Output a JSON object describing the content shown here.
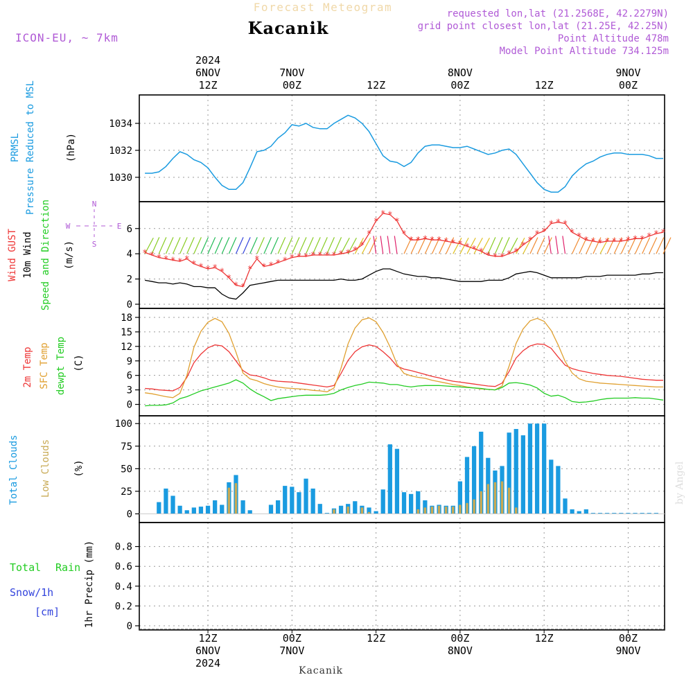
{
  "header": {
    "product": "Forecast Meteogram",
    "location": "Kacanik",
    "model": "ICON-EU, ~ 7km",
    "requested": "requested lon,lat (21.2568E, 42.2279N)",
    "gridpoint": "grid point closest lon,lat (21.25E, 42.25N)",
    "point_altitude": "Point Altitude 478m",
    "model_altitude": "Model Point Altitude 734.125m",
    "footer_location": "Kacanik",
    "watermark": "by Angel"
  },
  "colors": {
    "pressure": "#1a9be0",
    "gust": "#ee3535",
    "wind10m": "#000000",
    "temp2m": "#ee3535",
    "sfc": "#e0a030",
    "dewpt": "#22cc22",
    "total_clouds": "#1a9be0",
    "low_clouds": "#c8aa55",
    "rain": "#22cc22",
    "snow": "#3344dd",
    "purple": "#b05ad6"
  },
  "time_axis": {
    "top_labels": [
      {
        "h": 12,
        "l1": "2024",
        "l2": "6NOV",
        "l3": "12Z"
      },
      {
        "h": 24,
        "l2": "7NOV",
        "l3": "00Z"
      },
      {
        "h": 36,
        "l3": "12Z"
      },
      {
        "h": 48,
        "l2": "8NOV",
        "l3": "00Z"
      },
      {
        "h": 60,
        "l3": "12Z"
      },
      {
        "h": 72,
        "l2": "9NOV",
        "l3": "00Z"
      }
    ],
    "bottom_labels": [
      {
        "h": 12,
        "l1": "12Z",
        "l2": "6NOV",
        "l3": "2024"
      },
      {
        "h": 24,
        "l1": "00Z",
        "l2": "7NOV"
      },
      {
        "h": 36,
        "l1": "12Z"
      },
      {
        "h": 48,
        "l1": "00Z",
        "l2": "8NOV"
      },
      {
        "h": 60,
        "l1": "12Z"
      },
      {
        "h": 72,
        "l1": "00Z",
        "l2": "9NOV"
      }
    ],
    "range_hours": [
      2.2,
      77.2
    ]
  },
  "panels": {
    "pressure": {
      "labels": [
        "PRMSL",
        "Pressure Reduced to MSL"
      ],
      "unit": "(hPa)",
      "ticks": [
        "1030",
        "1032",
        "1034"
      ],
      "tick_values": [
        1030,
        1032,
        1034
      ],
      "ylim": [
        1028.5,
        1035.8
      ]
    },
    "wind": {
      "labels": [
        "Wind GUST",
        "10m Wind",
        "Speed and Direction"
      ],
      "unit": "(m/s)",
      "ticks": [
        "0",
        "2",
        "4",
        "6"
      ],
      "tick_values": [
        0,
        2,
        4,
        6
      ],
      "ylim": [
        0,
        7.8
      ],
      "compass": {
        "n": "N",
        "s": "S",
        "w": "W",
        "e": "E"
      }
    },
    "temp": {
      "labels": [
        "2m Temp",
        "SFC Temp",
        "dewpt Temp"
      ],
      "unit": "(C)",
      "ticks": [
        "0",
        "3",
        "6",
        "9",
        "12",
        "15",
        "18"
      ],
      "tick_values": [
        0,
        3,
        6,
        9,
        12,
        15,
        18
      ],
      "ylim": [
        -1.5,
        19
      ]
    },
    "clouds": {
      "labels": [
        "Total Clouds",
        "Low Clouds"
      ],
      "unit": "(%)",
      "ticks": [
        "0",
        "25",
        "50",
        "75",
        "100"
      ],
      "tick_values": [
        0,
        25,
        50,
        75,
        100
      ],
      "ylim": [
        -5,
        104
      ]
    },
    "precip": {
      "labels": [
        "Total",
        "Rain",
        "Snow/1h",
        "[cm]"
      ],
      "unit": "1hr Precip (mm)",
      "ticks": [
        "0",
        "0.2",
        "0.4",
        "0.6",
        "0.8"
      ],
      "tick_values": [
        0,
        0.2,
        0.4,
        0.6,
        0.8
      ],
      "ylim": [
        0,
        1.0
      ]
    }
  },
  "chart_data": [
    {
      "type": "line",
      "title": "PRMSL Pressure Reduced to MSL",
      "ylabel": "hPa",
      "x": [
        3,
        4,
        5,
        6,
        7,
        8,
        9,
        10,
        11,
        12,
        13,
        14,
        15,
        16,
        17,
        18,
        19,
        20,
        21,
        22,
        23,
        24,
        25,
        26,
        27,
        28,
        29,
        30,
        31,
        32,
        33,
        34,
        35,
        36,
        37,
        38,
        39,
        40,
        41,
        42,
        43,
        44,
        45,
        46,
        47,
        48,
        49,
        50,
        51,
        52,
        53,
        54,
        55,
        56,
        57,
        58,
        59,
        60,
        61,
        62,
        63,
        64,
        65,
        66,
        67,
        68,
        69,
        70,
        71,
        72,
        73,
        74,
        75,
        76,
        77
      ],
      "series": [
        {
          "name": "PRMSL",
          "values": [
            1030.3,
            1030.3,
            1030.4,
            1030.8,
            1031.4,
            1031.9,
            1031.7,
            1031.3,
            1031.1,
            1030.7,
            1030.0,
            1029.4,
            1029.1,
            1029.1,
            1029.6,
            1030.7,
            1031.9,
            1032.0,
            1032.3,
            1032.9,
            1033.3,
            1033.9,
            1033.8,
            1034.0,
            1033.7,
            1033.6,
            1033.6,
            1034.0,
            1034.3,
            1034.6,
            1034.4,
            1034.0,
            1033.4,
            1032.5,
            1031.6,
            1031.2,
            1031.1,
            1030.8,
            1031.1,
            1031.8,
            1032.3,
            1032.4,
            1032.4,
            1032.3,
            1032.2,
            1032.2,
            1032.3,
            1032.1,
            1031.9,
            1031.7,
            1031.8,
            1032.0,
            1032.1,
            1031.7,
            1031.0,
            1030.3,
            1029.6,
            1029.1,
            1028.9,
            1028.9,
            1029.3,
            1030.1,
            1030.6,
            1031.0,
            1031.2,
            1031.5,
            1031.7,
            1031.8,
            1031.8,
            1031.7,
            1031.7,
            1031.7,
            1031.6,
            1031.4,
            1031.4
          ]
        }
      ]
    },
    {
      "type": "line",
      "title": "Wind GUST / 10m Wind",
      "ylabel": "m/s",
      "x": [
        3,
        4,
        5,
        6,
        7,
        8,
        9,
        10,
        11,
        12,
        13,
        14,
        15,
        16,
        17,
        18,
        19,
        20,
        21,
        22,
        23,
        24,
        25,
        26,
        27,
        28,
        29,
        30,
        31,
        32,
        33,
        34,
        35,
        36,
        37,
        38,
        39,
        40,
        41,
        42,
        43,
        44,
        45,
        46,
        47,
        48,
        49,
        50,
        51,
        52,
        53,
        54,
        55,
        56,
        57,
        58,
        59,
        60,
        61,
        62,
        63,
        64,
        65,
        66,
        67,
        68,
        69,
        70,
        71,
        72,
        73,
        74,
        75,
        76,
        77
      ],
      "series": [
        {
          "name": "Wind GUST",
          "values": [
            4.1,
            3.9,
            3.7,
            3.6,
            3.5,
            3.4,
            3.6,
            3.2,
            3.0,
            2.8,
            2.9,
            2.6,
            2.1,
            1.5,
            1.4,
            2.8,
            3.6,
            3.0,
            3.1,
            3.3,
            3.5,
            3.7,
            3.8,
            3.8,
            3.9,
            3.9,
            3.9,
            3.9,
            4.0,
            4.1,
            4.3,
            4.7,
            5.6,
            6.6,
            7.2,
            7.1,
            6.6,
            5.6,
            5.1,
            5.1,
            5.2,
            5.1,
            5.1,
            5.0,
            4.9,
            4.8,
            4.6,
            4.4,
            4.2,
            3.9,
            3.8,
            3.8,
            4.0,
            4.2,
            4.7,
            5.1,
            5.6,
            5.8,
            6.4,
            6.5,
            6.4,
            5.7,
            5.4,
            5.1,
            5.0,
            4.9,
            5.0,
            5.0,
            5.0,
            5.1,
            5.2,
            5.2,
            5.4,
            5.6,
            5.7
          ]
        },
        {
          "name": "10m Wind",
          "values": [
            1.9,
            1.8,
            1.7,
            1.7,
            1.6,
            1.7,
            1.6,
            1.4,
            1.4,
            1.3,
            1.3,
            0.8,
            0.5,
            0.4,
            0.9,
            1.5,
            1.6,
            1.7,
            1.8,
            1.9,
            1.9,
            1.9,
            1.9,
            1.9,
            1.9,
            1.9,
            1.9,
            1.9,
            2.0,
            1.9,
            1.9,
            2.0,
            2.3,
            2.6,
            2.8,
            2.8,
            2.6,
            2.4,
            2.3,
            2.2,
            2.2,
            2.1,
            2.1,
            2.0,
            1.9,
            1.8,
            1.8,
            1.8,
            1.8,
            1.9,
            1.9,
            1.9,
            2.1,
            2.4,
            2.5,
            2.6,
            2.5,
            2.3,
            2.1,
            2.1,
            2.1,
            2.1,
            2.1,
            2.2,
            2.2,
            2.2,
            2.3,
            2.3,
            2.3,
            2.3,
            2.3,
            2.4,
            2.4,
            2.5,
            2.5
          ]
        }
      ]
    },
    {
      "type": "line",
      "title": "2m Temp / SFC Temp / dewpt Temp",
      "ylabel": "C",
      "x": [
        3,
        4,
        5,
        6,
        7,
        8,
        9,
        10,
        11,
        12,
        13,
        14,
        15,
        16,
        17,
        18,
        19,
        20,
        21,
        22,
        23,
        24,
        25,
        26,
        27,
        28,
        29,
        30,
        31,
        32,
        33,
        34,
        35,
        36,
        37,
        38,
        39,
        40,
        41,
        42,
        43,
        44,
        45,
        46,
        47,
        48,
        49,
        50,
        51,
        52,
        53,
        54,
        55,
        56,
        57,
        58,
        59,
        60,
        61,
        62,
        63,
        64,
        65,
        66,
        67,
        68,
        69,
        70,
        71,
        72,
        73,
        74,
        75,
        76,
        77
      ],
      "series": [
        {
          "name": "2m Temp",
          "values": [
            3.3,
            3.2,
            3.0,
            2.9,
            2.8,
            3.5,
            5.6,
            8.6,
            10.4,
            11.7,
            12.3,
            12.1,
            10.9,
            9.0,
            7.0,
            6.1,
            5.9,
            5.5,
            5.0,
            4.8,
            4.7,
            4.6,
            4.4,
            4.2,
            4.0,
            3.8,
            3.6,
            3.9,
            6.4,
            9.1,
            10.9,
            11.9,
            12.3,
            12.0,
            10.9,
            9.6,
            7.9,
            7.3,
            7.0,
            6.6,
            6.2,
            5.8,
            5.5,
            5.1,
            4.8,
            4.6,
            4.4,
            4.2,
            4.0,
            3.8,
            3.7,
            4.4,
            6.8,
            9.6,
            11.1,
            12.1,
            12.5,
            12.4,
            11.6,
            9.8,
            8.1,
            7.4,
            7.0,
            6.7,
            6.4,
            6.2,
            6.0,
            5.9,
            5.8,
            5.6,
            5.4,
            5.2,
            5.1,
            5.0,
            5.0
          ]
        },
        {
          "name": "SFC Temp",
          "values": [
            2.4,
            2.2,
            1.9,
            1.6,
            1.4,
            2.3,
            6.0,
            11.8,
            15.1,
            17.0,
            17.8,
            17.1,
            14.7,
            10.8,
            6.5,
            5.3,
            4.9,
            4.3,
            3.9,
            3.6,
            3.4,
            3.3,
            3.2,
            3.1,
            2.9,
            2.8,
            2.6,
            3.4,
            7.5,
            12.5,
            15.8,
            17.5,
            17.9,
            17.1,
            14.9,
            11.9,
            8.3,
            6.4,
            5.9,
            5.6,
            5.4,
            5.0,
            4.7,
            4.4,
            4.1,
            3.9,
            3.6,
            3.4,
            3.2,
            3.1,
            3.0,
            3.8,
            7.9,
            12.6,
            15.6,
            17.3,
            17.8,
            17.2,
            15.3,
            12.3,
            8.9,
            6.5,
            5.3,
            4.8,
            4.6,
            4.4,
            4.3,
            4.2,
            4.1,
            4.0,
            3.9,
            3.8,
            3.7,
            3.6,
            3.6
          ]
        },
        {
          "name": "dewpt Temp",
          "values": [
            -0.3,
            -0.2,
            -0.2,
            -0.1,
            0.3,
            1.2,
            1.6,
            2.2,
            2.8,
            3.2,
            3.6,
            4.0,
            4.4,
            5.1,
            4.4,
            3.2,
            2.3,
            1.6,
            0.8,
            1.2,
            1.4,
            1.6,
            1.8,
            1.9,
            1.9,
            1.9,
            2.0,
            2.3,
            3.0,
            3.5,
            3.9,
            4.2,
            4.6,
            4.5,
            4.4,
            4.1,
            4.1,
            3.8,
            3.6,
            3.8,
            3.9,
            3.9,
            3.9,
            3.8,
            3.7,
            3.6,
            3.5,
            3.4,
            3.3,
            3.1,
            3.0,
            3.5,
            4.4,
            4.5,
            4.3,
            4.0,
            3.4,
            2.3,
            1.7,
            1.9,
            1.4,
            0.6,
            0.4,
            0.5,
            0.7,
            1.0,
            1.2,
            1.3,
            1.3,
            1.3,
            1.4,
            1.3,
            1.3,
            1.1,
            0.9
          ]
        }
      ]
    },
    {
      "type": "bar",
      "title": "Total Clouds / Low Clouds",
      "ylabel": "%",
      "x": [
        3,
        4,
        5,
        6,
        7,
        8,
        9,
        10,
        11,
        12,
        13,
        14,
        15,
        16,
        17,
        18,
        19,
        20,
        21,
        22,
        23,
        24,
        25,
        26,
        27,
        28,
        29,
        30,
        31,
        32,
        33,
        34,
        35,
        36,
        37,
        38,
        39,
        40,
        41,
        42,
        43,
        44,
        45,
        46,
        47,
        48,
        49,
        50,
        51,
        52,
        53,
        54,
        55,
        56,
        57,
        58,
        59,
        60,
        61,
        62,
        63,
        64,
        65,
        66,
        67,
        68,
        69,
        70,
        71,
        72,
        73,
        74,
        75,
        76,
        77
      ],
      "series": [
        {
          "name": "Total Clouds",
          "values": [
            0,
            0,
            13,
            28,
            20,
            9,
            4,
            7,
            8,
            9,
            15,
            10,
            35,
            43,
            15,
            4,
            0,
            0,
            10,
            15,
            31,
            30,
            24,
            39,
            28,
            11,
            1,
            6,
            9,
            11,
            14,
            9,
            7,
            3,
            27,
            77,
            72,
            24,
            22,
            25,
            15,
            9,
            10,
            9,
            9,
            36,
            63,
            75,
            91,
            62,
            48,
            53,
            90,
            94,
            87,
            100,
            100,
            100,
            60,
            53,
            17,
            5,
            3,
            5,
            1,
            1,
            1,
            1,
            1,
            1,
            1,
            1,
            1,
            1,
            0
          ]
        },
        {
          "name": "Low Clouds",
          "values": [
            0,
            0,
            0,
            0,
            0,
            0,
            0,
            0,
            0,
            0,
            0,
            0,
            29,
            34,
            0,
            0,
            0,
            0,
            0,
            0,
            0,
            0,
            0,
            0,
            0,
            0,
            0,
            5,
            0,
            8,
            0,
            7,
            2,
            0,
            0,
            0,
            0,
            0,
            0,
            5,
            7,
            8,
            9,
            8,
            8,
            10,
            12,
            16,
            25,
            33,
            35,
            36,
            29,
            7,
            0,
            0,
            0,
            0,
            0,
            0,
            0,
            0,
            0,
            0,
            0,
            0,
            0,
            0,
            0,
            0,
            0,
            0,
            0,
            0,
            0
          ]
        }
      ]
    },
    {
      "type": "bar",
      "title": "1hr Precip",
      "ylabel": "mm",
      "x": [
        3,
        77
      ],
      "series": [
        {
          "name": "Total Rain",
          "values": [
            0,
            0
          ]
        },
        {
          "name": "Snow/1h",
          "values": [
            0,
            0
          ]
        }
      ]
    }
  ]
}
